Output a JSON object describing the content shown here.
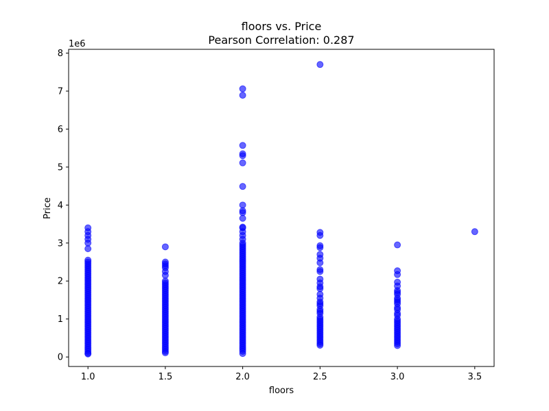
{
  "chart_data": {
    "type": "scatter",
    "title": "floors vs. Price",
    "subtitle": "Pearson Correlation: 0.287",
    "xlabel": "floors",
    "ylabel": "Price",
    "y_offset_text": "1e6",
    "xlim": [
      0.875,
      3.625
    ],
    "ylim": [
      -250000,
      8100000
    ],
    "x_ticks": [
      1.0,
      1.5,
      2.0,
      2.5,
      3.0,
      3.5
    ],
    "x_tick_labels": [
      "1.0",
      "1.5",
      "2.0",
      "2.5",
      "3.0",
      "3.5"
    ],
    "y_ticks": [
      0,
      1000000,
      2000000,
      3000000,
      4000000,
      5000000,
      6000000,
      7000000,
      8000000
    ],
    "y_tick_labels": [
      "0",
      "1",
      "2",
      "3",
      "4",
      "5",
      "6",
      "7",
      "8"
    ],
    "marker_color": "#0000ff",
    "marker_alpha": 0.6,
    "grid": false,
    "legend": "none",
    "points": [
      {
        "x": 1.0,
        "y": 3400000
      },
      {
        "x": 1.0,
        "y": 3300000
      },
      {
        "x": 1.0,
        "y": 3200000
      },
      {
        "x": 1.0,
        "y": 3100000
      },
      {
        "x": 1.0,
        "y": 3000000
      },
      {
        "x": 1.0,
        "y": 2850000
      },
      {
        "x": 1.0,
        "y": 2550000
      },
      {
        "x": 1.0,
        "y": 2500000
      },
      {
        "x": 1.0,
        "y": 2450000
      },
      {
        "x": 1.0,
        "y": 2400000
      },
      {
        "x": 1.0,
        "y": 2350000
      },
      {
        "x": 1.0,
        "y": 2300000
      },
      {
        "x": 1.0,
        "y": 2250000
      },
      {
        "x": 1.0,
        "y": 2200000
      },
      {
        "x": 1.0,
        "y": 2150000
      },
      {
        "x": 1.0,
        "y": 2100000
      },
      {
        "x": 1.0,
        "y": 2050000
      },
      {
        "x": 1.0,
        "y": 2000000
      },
      {
        "x": 1.0,
        "y": 1950000
      },
      {
        "x": 1.0,
        "y": 1900000
      },
      {
        "x": 1.0,
        "y": 1850000
      },
      {
        "x": 1.0,
        "y": 1800000
      },
      {
        "x": 1.0,
        "y": 1750000
      },
      {
        "x": 1.0,
        "y": 1700000
      },
      {
        "x": 1.0,
        "y": 1650000
      },
      {
        "x": 1.0,
        "y": 1600000
      },
      {
        "x": 1.0,
        "y": 1550000
      },
      {
        "x": 1.0,
        "y": 1500000
      },
      {
        "x": 1.0,
        "y": 1450000
      },
      {
        "x": 1.0,
        "y": 1400000
      },
      {
        "x": 1.0,
        "y": 1350000
      },
      {
        "x": 1.0,
        "y": 1300000
      },
      {
        "x": 1.0,
        "y": 1250000
      },
      {
        "x": 1.0,
        "y": 1200000
      },
      {
        "x": 1.0,
        "y": 1150000
      },
      {
        "x": 1.0,
        "y": 1100000
      },
      {
        "x": 1.0,
        "y": 1050000
      },
      {
        "x": 1.0,
        "y": 1000000
      },
      {
        "x": 1.0,
        "y": 950000
      },
      {
        "x": 1.0,
        "y": 900000
      },
      {
        "x": 1.0,
        "y": 850000
      },
      {
        "x": 1.0,
        "y": 800000
      },
      {
        "x": 1.0,
        "y": 750000
      },
      {
        "x": 1.0,
        "y": 700000
      },
      {
        "x": 1.0,
        "y": 650000
      },
      {
        "x": 1.0,
        "y": 600000
      },
      {
        "x": 1.0,
        "y": 550000
      },
      {
        "x": 1.0,
        "y": 500000
      },
      {
        "x": 1.0,
        "y": 450000
      },
      {
        "x": 1.0,
        "y": 400000
      },
      {
        "x": 1.0,
        "y": 350000
      },
      {
        "x": 1.0,
        "y": 300000
      },
      {
        "x": 1.0,
        "y": 250000
      },
      {
        "x": 1.0,
        "y": 200000
      },
      {
        "x": 1.0,
        "y": 150000
      },
      {
        "x": 1.0,
        "y": 100000
      },
      {
        "x": 1.0,
        "y": 80000
      },
      {
        "x": 1.5,
        "y": 2900000
      },
      {
        "x": 1.5,
        "y": 2500000
      },
      {
        "x": 1.5,
        "y": 2450000
      },
      {
        "x": 1.5,
        "y": 2400000
      },
      {
        "x": 1.5,
        "y": 2350000
      },
      {
        "x": 1.5,
        "y": 2250000
      },
      {
        "x": 1.5,
        "y": 2150000
      },
      {
        "x": 1.5,
        "y": 2000000
      },
      {
        "x": 1.5,
        "y": 1950000
      },
      {
        "x": 1.5,
        "y": 1900000
      },
      {
        "x": 1.5,
        "y": 1850000
      },
      {
        "x": 1.5,
        "y": 1800000
      },
      {
        "x": 1.5,
        "y": 1750000
      },
      {
        "x": 1.5,
        "y": 1700000
      },
      {
        "x": 1.5,
        "y": 1650000
      },
      {
        "x": 1.5,
        "y": 1600000
      },
      {
        "x": 1.5,
        "y": 1550000
      },
      {
        "x": 1.5,
        "y": 1500000
      },
      {
        "x": 1.5,
        "y": 1450000
      },
      {
        "x": 1.5,
        "y": 1400000
      },
      {
        "x": 1.5,
        "y": 1350000
      },
      {
        "x": 1.5,
        "y": 1300000
      },
      {
        "x": 1.5,
        "y": 1250000
      },
      {
        "x": 1.5,
        "y": 1200000
      },
      {
        "x": 1.5,
        "y": 1150000
      },
      {
        "x": 1.5,
        "y": 1100000
      },
      {
        "x": 1.5,
        "y": 1050000
      },
      {
        "x": 1.5,
        "y": 1000000
      },
      {
        "x": 1.5,
        "y": 950000
      },
      {
        "x": 1.5,
        "y": 900000
      },
      {
        "x": 1.5,
        "y": 850000
      },
      {
        "x": 1.5,
        "y": 800000
      },
      {
        "x": 1.5,
        "y": 750000
      },
      {
        "x": 1.5,
        "y": 700000
      },
      {
        "x": 1.5,
        "y": 650000
      },
      {
        "x": 1.5,
        "y": 600000
      },
      {
        "x": 1.5,
        "y": 550000
      },
      {
        "x": 1.5,
        "y": 500000
      },
      {
        "x": 1.5,
        "y": 450000
      },
      {
        "x": 1.5,
        "y": 400000
      },
      {
        "x": 1.5,
        "y": 350000
      },
      {
        "x": 1.5,
        "y": 300000
      },
      {
        "x": 1.5,
        "y": 250000
      },
      {
        "x": 1.5,
        "y": 200000
      },
      {
        "x": 1.5,
        "y": 150000
      },
      {
        "x": 1.5,
        "y": 110000
      },
      {
        "x": 2.0,
        "y": 7060000
      },
      {
        "x": 2.0,
        "y": 6890000
      },
      {
        "x": 2.0,
        "y": 5570000
      },
      {
        "x": 2.0,
        "y": 5350000
      },
      {
        "x": 2.0,
        "y": 5300000
      },
      {
        "x": 2.0,
        "y": 5110000
      },
      {
        "x": 2.0,
        "y": 4490000
      },
      {
        "x": 2.0,
        "y": 4000000
      },
      {
        "x": 2.0,
        "y": 3850000
      },
      {
        "x": 2.0,
        "y": 3800000
      },
      {
        "x": 2.0,
        "y": 3650000
      },
      {
        "x": 2.0,
        "y": 3420000
      },
      {
        "x": 2.0,
        "y": 3400000
      },
      {
        "x": 2.0,
        "y": 3300000
      },
      {
        "x": 2.0,
        "y": 3200000
      },
      {
        "x": 2.0,
        "y": 3100000
      },
      {
        "x": 2.0,
        "y": 3000000
      },
      {
        "x": 2.0,
        "y": 2950000
      },
      {
        "x": 2.0,
        "y": 2900000
      },
      {
        "x": 2.0,
        "y": 2850000
      },
      {
        "x": 2.0,
        "y": 2800000
      },
      {
        "x": 2.0,
        "y": 2750000
      },
      {
        "x": 2.0,
        "y": 2700000
      },
      {
        "x": 2.0,
        "y": 2650000
      },
      {
        "x": 2.0,
        "y": 2600000
      },
      {
        "x": 2.0,
        "y": 2550000
      },
      {
        "x": 2.0,
        "y": 2500000
      },
      {
        "x": 2.0,
        "y": 2450000
      },
      {
        "x": 2.0,
        "y": 2400000
      },
      {
        "x": 2.0,
        "y": 2350000
      },
      {
        "x": 2.0,
        "y": 2300000
      },
      {
        "x": 2.0,
        "y": 2250000
      },
      {
        "x": 2.0,
        "y": 2200000
      },
      {
        "x": 2.0,
        "y": 2150000
      },
      {
        "x": 2.0,
        "y": 2100000
      },
      {
        "x": 2.0,
        "y": 2050000
      },
      {
        "x": 2.0,
        "y": 2000000
      },
      {
        "x": 2.0,
        "y": 1950000
      },
      {
        "x": 2.0,
        "y": 1900000
      },
      {
        "x": 2.0,
        "y": 1850000
      },
      {
        "x": 2.0,
        "y": 1800000
      },
      {
        "x": 2.0,
        "y": 1750000
      },
      {
        "x": 2.0,
        "y": 1700000
      },
      {
        "x": 2.0,
        "y": 1650000
      },
      {
        "x": 2.0,
        "y": 1600000
      },
      {
        "x": 2.0,
        "y": 1550000
      },
      {
        "x": 2.0,
        "y": 1500000
      },
      {
        "x": 2.0,
        "y": 1450000
      },
      {
        "x": 2.0,
        "y": 1400000
      },
      {
        "x": 2.0,
        "y": 1350000
      },
      {
        "x": 2.0,
        "y": 1300000
      },
      {
        "x": 2.0,
        "y": 1250000
      },
      {
        "x": 2.0,
        "y": 1200000
      },
      {
        "x": 2.0,
        "y": 1150000
      },
      {
        "x": 2.0,
        "y": 1100000
      },
      {
        "x": 2.0,
        "y": 1050000
      },
      {
        "x": 2.0,
        "y": 1000000
      },
      {
        "x": 2.0,
        "y": 950000
      },
      {
        "x": 2.0,
        "y": 900000
      },
      {
        "x": 2.0,
        "y": 850000
      },
      {
        "x": 2.0,
        "y": 800000
      },
      {
        "x": 2.0,
        "y": 750000
      },
      {
        "x": 2.0,
        "y": 700000
      },
      {
        "x": 2.0,
        "y": 650000
      },
      {
        "x": 2.0,
        "y": 600000
      },
      {
        "x": 2.0,
        "y": 550000
      },
      {
        "x": 2.0,
        "y": 500000
      },
      {
        "x": 2.0,
        "y": 450000
      },
      {
        "x": 2.0,
        "y": 400000
      },
      {
        "x": 2.0,
        "y": 350000
      },
      {
        "x": 2.0,
        "y": 300000
      },
      {
        "x": 2.0,
        "y": 250000
      },
      {
        "x": 2.0,
        "y": 200000
      },
      {
        "x": 2.0,
        "y": 150000
      },
      {
        "x": 2.0,
        "y": 90000
      },
      {
        "x": 2.5,
        "y": 7700000
      },
      {
        "x": 2.5,
        "y": 3280000
      },
      {
        "x": 2.5,
        "y": 3200000
      },
      {
        "x": 2.5,
        "y": 2930000
      },
      {
        "x": 2.5,
        "y": 2880000
      },
      {
        "x": 2.5,
        "y": 2700000
      },
      {
        "x": 2.5,
        "y": 2600000
      },
      {
        "x": 2.5,
        "y": 2480000
      },
      {
        "x": 2.5,
        "y": 2300000
      },
      {
        "x": 2.5,
        "y": 2250000
      },
      {
        "x": 2.5,
        "y": 2050000
      },
      {
        "x": 2.5,
        "y": 1950000
      },
      {
        "x": 2.5,
        "y": 1850000
      },
      {
        "x": 2.5,
        "y": 1800000
      },
      {
        "x": 2.5,
        "y": 1650000
      },
      {
        "x": 2.5,
        "y": 1550000
      },
      {
        "x": 2.5,
        "y": 1450000
      },
      {
        "x": 2.5,
        "y": 1400000
      },
      {
        "x": 2.5,
        "y": 1350000
      },
      {
        "x": 2.5,
        "y": 1250000
      },
      {
        "x": 2.5,
        "y": 1200000
      },
      {
        "x": 2.5,
        "y": 1150000
      },
      {
        "x": 2.5,
        "y": 1050000
      },
      {
        "x": 2.5,
        "y": 1000000
      },
      {
        "x": 2.5,
        "y": 950000
      },
      {
        "x": 2.5,
        "y": 900000
      },
      {
        "x": 2.5,
        "y": 850000
      },
      {
        "x": 2.5,
        "y": 800000
      },
      {
        "x": 2.5,
        "y": 750000
      },
      {
        "x": 2.5,
        "y": 700000
      },
      {
        "x": 2.5,
        "y": 650000
      },
      {
        "x": 2.5,
        "y": 600000
      },
      {
        "x": 2.5,
        "y": 550000
      },
      {
        "x": 2.5,
        "y": 500000
      },
      {
        "x": 2.5,
        "y": 450000
      },
      {
        "x": 2.5,
        "y": 400000
      },
      {
        "x": 2.5,
        "y": 350000
      },
      {
        "x": 2.5,
        "y": 310000
      },
      {
        "x": 3.0,
        "y": 2950000
      },
      {
        "x": 3.0,
        "y": 2270000
      },
      {
        "x": 3.0,
        "y": 2170000
      },
      {
        "x": 3.0,
        "y": 1970000
      },
      {
        "x": 3.0,
        "y": 1870000
      },
      {
        "x": 3.0,
        "y": 1750000
      },
      {
        "x": 3.0,
        "y": 1700000
      },
      {
        "x": 3.0,
        "y": 1650000
      },
      {
        "x": 3.0,
        "y": 1550000
      },
      {
        "x": 3.0,
        "y": 1500000
      },
      {
        "x": 3.0,
        "y": 1450000
      },
      {
        "x": 3.0,
        "y": 1400000
      },
      {
        "x": 3.0,
        "y": 1300000
      },
      {
        "x": 3.0,
        "y": 1250000
      },
      {
        "x": 3.0,
        "y": 1150000
      },
      {
        "x": 3.0,
        "y": 1100000
      },
      {
        "x": 3.0,
        "y": 1000000
      },
      {
        "x": 3.0,
        "y": 950000
      },
      {
        "x": 3.0,
        "y": 900000
      },
      {
        "x": 3.0,
        "y": 850000
      },
      {
        "x": 3.0,
        "y": 800000
      },
      {
        "x": 3.0,
        "y": 750000
      },
      {
        "x": 3.0,
        "y": 700000
      },
      {
        "x": 3.0,
        "y": 650000
      },
      {
        "x": 3.0,
        "y": 600000
      },
      {
        "x": 3.0,
        "y": 550000
      },
      {
        "x": 3.0,
        "y": 500000
      },
      {
        "x": 3.0,
        "y": 450000
      },
      {
        "x": 3.0,
        "y": 400000
      },
      {
        "x": 3.0,
        "y": 350000
      },
      {
        "x": 3.0,
        "y": 300000
      },
      {
        "x": 3.5,
        "y": 3300000
      }
    ]
  }
}
